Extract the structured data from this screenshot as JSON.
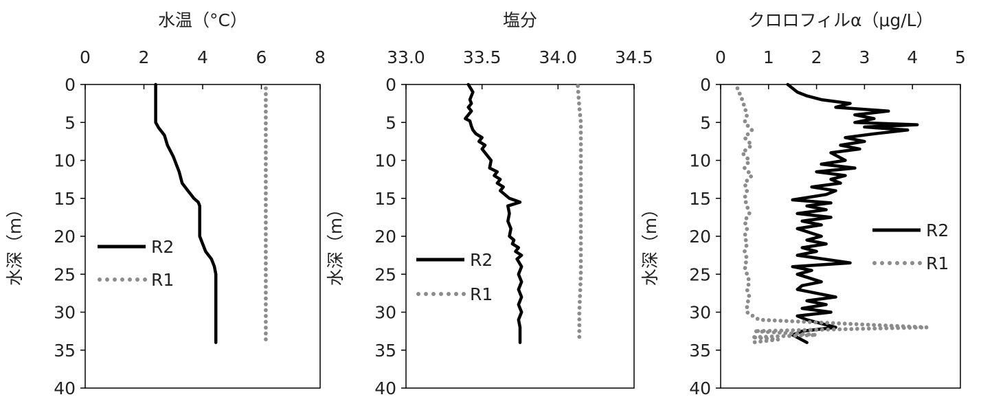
{
  "chart_data": [
    {
      "type": "line",
      "title": "水温（°C）",
      "ylabel": "水深（m）",
      "x_ticks": [
        "0",
        "2",
        "4",
        "6",
        "8"
      ],
      "xlim": [
        0,
        8
      ],
      "y_ticks": [
        "0",
        "5",
        "10",
        "15",
        "20",
        "25",
        "30",
        "35",
        "40"
      ],
      "ylim": [
        0,
        40
      ],
      "y_inverted": true,
      "legend": "left-middle",
      "series": [
        {
          "name": "R2",
          "style": "solid",
          "color": "#000000",
          "x": [
            2.4,
            2.4,
            2.4,
            2.4,
            2.4,
            2.4,
            2.5,
            2.7,
            2.8,
            3.0,
            3.1,
            3.2,
            3.3,
            3.5,
            3.7,
            3.85,
            3.9,
            3.9,
            3.9,
            3.9,
            4.0,
            4.1,
            4.3,
            4.4,
            4.45,
            4.45,
            4.45,
            4.45,
            4.45
          ],
          "y": [
            0,
            1,
            2,
            3,
            4,
            5,
            5.7,
            6.7,
            8,
            9.5,
            10.5,
            11.5,
            13,
            14,
            15,
            15.5,
            16,
            18,
            19.5,
            20,
            21,
            22,
            23,
            24,
            25,
            27,
            30,
            33,
            34
          ]
        },
        {
          "name": "R1",
          "style": "dotted",
          "color": "#8c8c8c",
          "x": [
            6.15,
            6.15,
            6.15,
            6.15,
            6.15,
            6.15,
            6.15,
            6.15
          ],
          "y": [
            0.5,
            5,
            10,
            15,
            20,
            25,
            30,
            34
          ]
        }
      ]
    },
    {
      "type": "line",
      "title": "塩分",
      "ylabel": "水深（m）",
      "x_ticks": [
        "33.0",
        "33.5",
        "34.0",
        "34.5"
      ],
      "xlim": [
        33.0,
        34.5
      ],
      "y_ticks": [
        "0",
        "5",
        "10",
        "15",
        "20",
        "25",
        "30",
        "35",
        "40"
      ],
      "ylim": [
        0,
        40
      ],
      "y_inverted": true,
      "legend": "left-middle",
      "series": [
        {
          "name": "R2",
          "style": "solid",
          "color": "#000000",
          "x": [
            33.41,
            33.44,
            33.42,
            33.43,
            33.41,
            33.43,
            33.39,
            33.42,
            33.43,
            33.44,
            33.46,
            33.5,
            33.48,
            33.52,
            33.5,
            33.54,
            33.56,
            33.55,
            33.6,
            33.58,
            33.62,
            33.6,
            33.64,
            33.62,
            33.68,
            33.75,
            33.67,
            33.68,
            33.67,
            33.69,
            33.68,
            33.71,
            33.7,
            33.74,
            33.72,
            33.76,
            33.73,
            33.76,
            33.74,
            33.76,
            33.74,
            33.76,
            33.74,
            33.76,
            33.74,
            33.75,
            33.75
          ],
          "y": [
            0,
            1,
            2,
            2.5,
            3,
            3.5,
            4.5,
            4.8,
            5.5,
            6,
            6.5,
            7,
            7.5,
            8,
            8.5,
            9.5,
            10,
            11,
            11.5,
            12,
            12.5,
            13,
            13.5,
            14,
            15,
            15.5,
            16,
            17,
            18,
            19,
            20,
            20.5,
            21,
            21.5,
            22,
            22.5,
            23,
            24,
            25,
            26,
            27,
            28,
            29,
            30,
            31,
            32,
            34
          ]
        },
        {
          "name": "R1",
          "style": "dotted",
          "color": "#8c8c8c",
          "x": [
            34.13,
            34.14,
            34.15,
            34.15,
            34.15,
            34.15,
            34.15,
            34.14,
            34.14
          ],
          "y": [
            0.2,
            3,
            5,
            10,
            15,
            20,
            25,
            30,
            33.5
          ]
        }
      ]
    },
    {
      "type": "line",
      "title": "クロロフィルα（μg/L）",
      "ylabel": "水深（m）",
      "x_ticks": [
        "0",
        "1",
        "2",
        "3",
        "4",
        "5"
      ],
      "xlim": [
        0,
        5
      ],
      "y_ticks": [
        "0",
        "5",
        "10",
        "15",
        "20",
        "25",
        "30",
        "35",
        "40"
      ],
      "ylim": [
        0,
        40
      ],
      "y_inverted": true,
      "legend": "right-middle",
      "series": [
        {
          "name": "R2",
          "style": "solid",
          "color": "#000000",
          "x": [
            1.4,
            1.6,
            1.8,
            2.1,
            2.7,
            2.4,
            3.5,
            2.8,
            3.2,
            2.8,
            4.1,
            3.0,
            3.9,
            3.2,
            2.6,
            3.0,
            2.5,
            2.9,
            2.3,
            2.6,
            2.1,
            2.8,
            2.0,
            2.6,
            2.3,
            2.5,
            1.9,
            2.4,
            2.2,
            1.5,
            2.3,
            1.8,
            2.2,
            1.6,
            2.3,
            1.7,
            2.1,
            1.6,
            2.1,
            1.8,
            2.2,
            1.7,
            2.0,
            1.6,
            2.7,
            1.5,
            1.9,
            1.6,
            2.1,
            1.7,
            1.6,
            2.4,
            1.8,
            2.2,
            1.7,
            2.3,
            1.6,
            1.8,
            2.4,
            1.7,
            1.5,
            1.8
          ],
          "y": [
            0,
            1,
            1.5,
            2,
            2.5,
            3,
            3.5,
            4,
            4.5,
            5,
            5.3,
            5.6,
            6,
            6.5,
            7,
            7.5,
            8,
            8.5,
            9,
            10,
            10.5,
            11,
            11.5,
            12,
            12.5,
            13,
            13.5,
            14,
            14.5,
            15.2,
            15.6,
            16,
            16.5,
            17,
            17.5,
            18,
            18.5,
            19,
            20,
            20.5,
            21,
            21.5,
            22,
            22.5,
            23.5,
            24,
            24.5,
            25,
            26,
            26.5,
            27,
            28,
            28.5,
            29,
            29.5,
            30,
            30.5,
            31,
            32,
            32.5,
            33,
            34
          ]
        },
        {
          "name": "R1",
          "style": "dotted",
          "color": "#8c8c8c",
          "x": [
            0.35,
            0.45,
            0.5,
            0.55,
            0.5,
            0.65,
            0.5,
            0.65,
            0.45,
            0.6,
            0.5,
            0.65,
            0.5,
            0.55,
            0.5,
            0.55,
            0.6,
            0.5,
            0.55,
            0.5,
            0.55,
            0.5,
            0.55,
            0.5,
            0.55,
            0.6,
            0.55,
            0.6,
            0.55,
            0.55,
            0.8,
            4.3,
            0.7,
            2.0,
            0.65,
            1.2,
            0.65
          ],
          "y": [
            0.5,
            2,
            3,
            4,
            5,
            6,
            7,
            8,
            9,
            10,
            11,
            12,
            13,
            14,
            15,
            16,
            17,
            18,
            19,
            20,
            21,
            22,
            23,
            24,
            25,
            26,
            27,
            28,
            29,
            30,
            31,
            32,
            32.5,
            33,
            33.3,
            33.6,
            34
          ]
        }
      ]
    }
  ]
}
